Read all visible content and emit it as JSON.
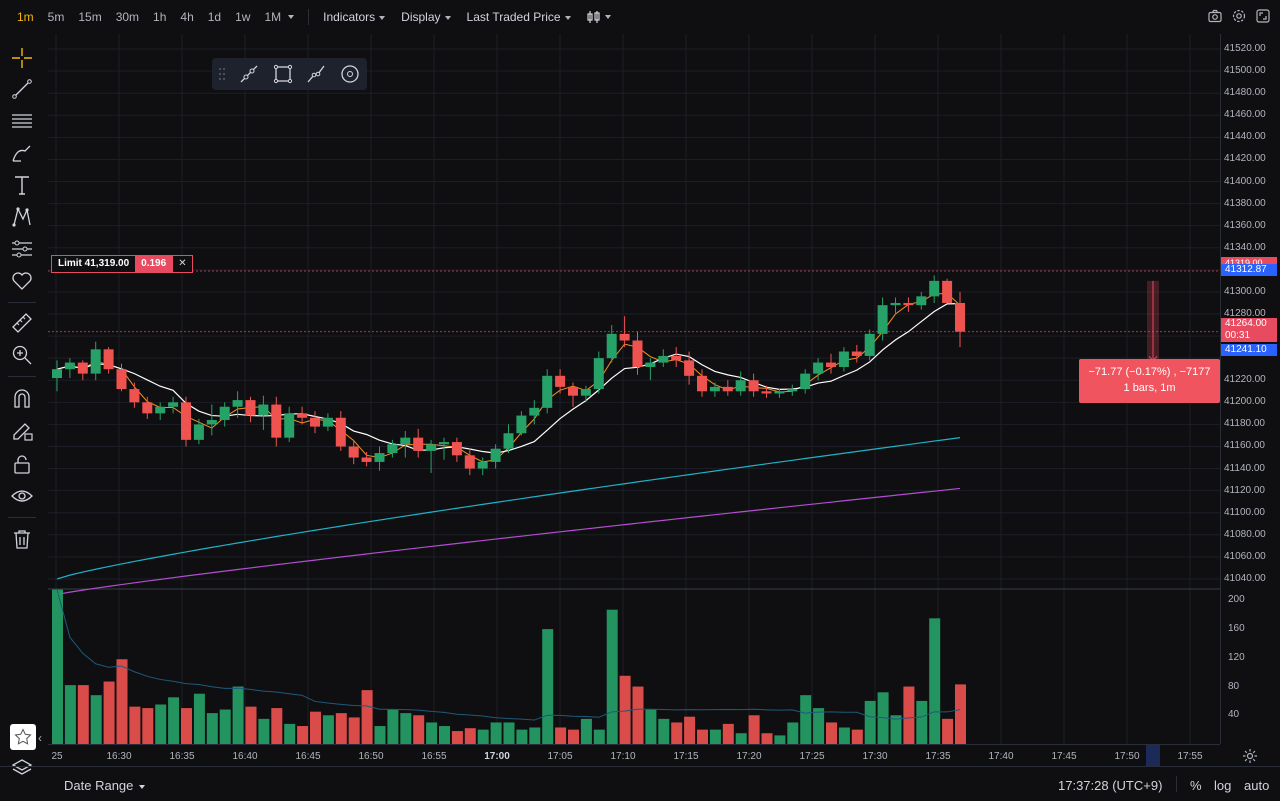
{
  "topbar": {
    "timeframes": [
      "1m",
      "5m",
      "15m",
      "30m",
      "1h",
      "4h",
      "1d",
      "1w",
      "1M"
    ],
    "active_timeframe": "1m",
    "indicators_label": "Indicators",
    "display_label": "Display",
    "price_source_label": "Last Traded Price"
  },
  "icons": {
    "camera": "camera-icon",
    "settings": "gear-icon",
    "fullscreen": "fullscreen-icon"
  },
  "colors": {
    "up": "#26a269",
    "down": "#ef5350",
    "ma_short": "#ffffff",
    "ma_mid": "#f7931a",
    "ma_long": "#20b2c8",
    "ma_longest": "#b24ed0",
    "background": "#0f0f12",
    "accent": "#f0b90b",
    "blue_tag": "#2962ff"
  },
  "order_line": {
    "label": "Limit 41,319.00",
    "qty": "0.196",
    "close": "✕"
  },
  "price_axis": {
    "ticks": [
      "41520.00",
      "41500.00",
      "41480.00",
      "41460.00",
      "41440.00",
      "41420.00",
      "41400.00",
      "41380.00",
      "41360.00",
      "41340.00",
      "41300.00",
      "41280.00",
      "41220.00",
      "41200.00",
      "41180.00",
      "41160.00",
      "41140.00",
      "41120.00",
      "41100.00",
      "41080.00",
      "41060.00",
      "41040.00"
    ],
    "tag_order": "41319.00",
    "tag_high": "41312.87",
    "tag_last": "41264.00",
    "tag_countdown": "00:31",
    "tag_measure": "41241.10"
  },
  "volume_axis": {
    "ticks": [
      "200",
      "160",
      "120",
      "80",
      "40"
    ]
  },
  "time_axis": {
    "labels": [
      "25",
      "16:30",
      "16:35",
      "16:40",
      "16:45",
      "16:50",
      "16:55",
      "17:00",
      "17:05",
      "17:10",
      "17:15",
      "17:20",
      "17:25",
      "17:30",
      "17:35",
      "17:40",
      "17:45",
      "17:50",
      "17:55"
    ]
  },
  "measure_tooltip": {
    "line1": "−71.77 (−0.17%) , −7177",
    "line2": "1 bars, 1m"
  },
  "bottombar": {
    "date_range_label": "Date Range",
    "clock": "17:37:28 (UTC+9)",
    "percent_label": "%",
    "log_label": "log",
    "auto_label": "auto"
  },
  "chart_data": {
    "type": "candlestick",
    "interval": "1m",
    "ylim": [
      41030,
      41530
    ],
    "volume_ylim": [
      0,
      220
    ],
    "candles": [
      [
        41222,
        41238,
        41210,
        41230,
        215
      ],
      [
        41230,
        41240,
        41222,
        41236,
        82
      ],
      [
        41236,
        41238,
        41220,
        41226,
        82
      ],
      [
        41226,
        41255,
        41220,
        41248,
        68
      ],
      [
        41248,
        41250,
        41226,
        41230,
        87
      ],
      [
        41230,
        41235,
        41210,
        41212,
        118
      ],
      [
        41212,
        41218,
        41195,
        41200,
        52
      ],
      [
        41200,
        41205,
        41185,
        41190,
        50
      ],
      [
        41190,
        41200,
        41184,
        41196,
        55
      ],
      [
        41196,
        41205,
        41190,
        41200,
        65
      ],
      [
        41200,
        41205,
        41160,
        41166,
        50
      ],
      [
        41166,
        41185,
        41162,
        41180,
        70
      ],
      [
        41180,
        41198,
        41170,
        41184,
        43
      ],
      [
        41184,
        41200,
        41178,
        41196,
        48
      ],
      [
        41196,
        41210,
        41186,
        41202,
        80
      ],
      [
        41202,
        41205,
        41182,
        41188,
        52
      ],
      [
        41188,
        41206,
        41175,
        41198,
        35
      ],
      [
        41198,
        41205,
        41160,
        41168,
        50
      ],
      [
        41168,
        41196,
        41164,
        41190,
        28
      ],
      [
        41190,
        41196,
        41180,
        41186,
        25
      ],
      [
        41186,
        41192,
        41172,
        41178,
        45
      ],
      [
        41178,
        41190,
        41174,
        41186,
        40
      ],
      [
        41186,
        41192,
        41156,
        41160,
        43
      ],
      [
        41160,
        41166,
        41144,
        41150,
        37
      ],
      [
        41150,
        41155,
        41142,
        41146,
        75
      ],
      [
        41146,
        41160,
        41138,
        41154,
        25
      ],
      [
        41154,
        41166,
        41150,
        41162,
        48
      ],
      [
        41162,
        41174,
        41150,
        41168,
        43
      ],
      [
        41168,
        41176,
        41150,
        41156,
        40
      ],
      [
        41156,
        41166,
        41136,
        41162,
        30
      ],
      [
        41162,
        41168,
        41148,
        41164,
        25
      ],
      [
        41164,
        41168,
        41146,
        41152,
        18
      ],
      [
        41152,
        41158,
        41134,
        41140,
        22
      ],
      [
        41140,
        41150,
        41134,
        41146,
        20
      ],
      [
        41146,
        41162,
        41140,
        41158,
        30
      ],
      [
        41158,
        41180,
        41154,
        41172,
        30
      ],
      [
        41172,
        41192,
        41170,
        41188,
        20
      ],
      [
        41188,
        41202,
        41180,
        41195,
        23
      ],
      [
        41195,
        41230,
        41190,
        41224,
        160
      ],
      [
        41224,
        41230,
        41208,
        41214,
        23
      ],
      [
        41214,
        41218,
        41196,
        41206,
        20
      ],
      [
        41206,
        41215,
        41200,
        41212,
        35
      ],
      [
        41212,
        41246,
        41208,
        41240,
        20
      ],
      [
        41240,
        41270,
        41236,
        41262,
        187
      ],
      [
        41262,
        41278,
        41250,
        41256,
        95
      ],
      [
        41256,
        41264,
        41225,
        41232,
        80
      ],
      [
        41232,
        41240,
        41220,
        41236,
        48
      ],
      [
        41236,
        41248,
        41232,
        41242,
        35
      ],
      [
        41242,
        41250,
        41232,
        41238,
        30
      ],
      [
        41238,
        41246,
        41216,
        41224,
        38
      ],
      [
        41224,
        41230,
        41205,
        41210,
        20
      ],
      [
        41210,
        41218,
        41205,
        41214,
        20
      ],
      [
        41214,
        41220,
        41206,
        41210,
        28
      ],
      [
        41210,
        41228,
        41206,
        41220,
        15
      ],
      [
        41220,
        41226,
        41205,
        41210,
        40
      ],
      [
        41210,
        41215,
        41204,
        41208,
        15
      ],
      [
        41208,
        41212,
        41204,
        41210,
        12
      ],
      [
        41210,
        41216,
        41206,
        41212,
        30
      ],
      [
        41212,
        41230,
        41208,
        41226,
        68
      ],
      [
        41226,
        41240,
        41220,
        41236,
        50
      ],
      [
        41236,
        41244,
        41226,
        41232,
        30
      ],
      [
        41232,
        41250,
        41228,
        41246,
        23
      ],
      [
        41246,
        41252,
        41236,
        41242,
        20
      ],
      [
        41242,
        41266,
        41238,
        41262,
        60
      ],
      [
        41262,
        41295,
        41256,
        41288,
        72
      ],
      [
        41288,
        41295,
        41280,
        41290,
        40
      ],
      [
        41290,
        41295,
        41282,
        41288,
        80
      ],
      [
        41288,
        41300,
        41284,
        41296,
        60
      ],
      [
        41296,
        41315,
        41290,
        41310,
        175
      ],
      [
        41310,
        41312,
        41290,
        41290,
        35
      ],
      [
        41290,
        41300,
        41250,
        41264,
        83
      ]
    ]
  }
}
